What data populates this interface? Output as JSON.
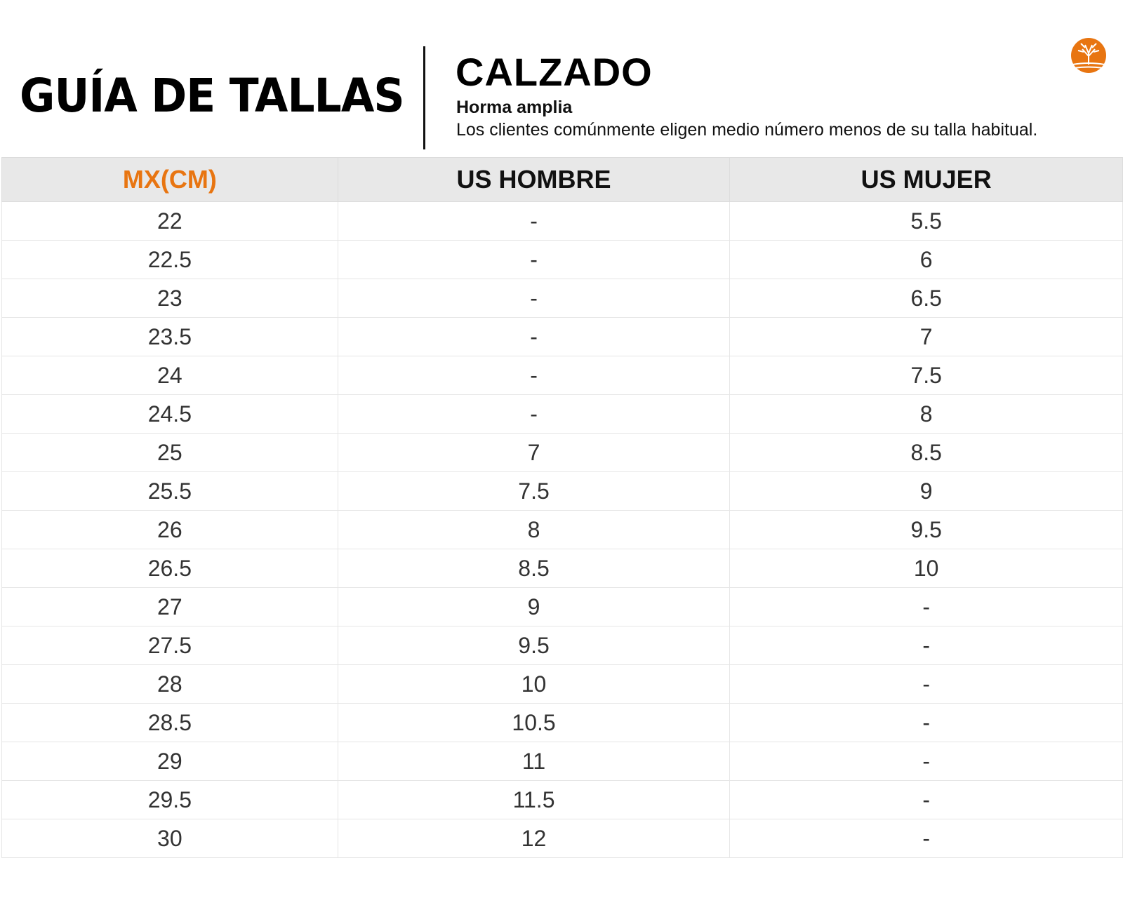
{
  "header": {
    "title": "GUÍA DE TALLAS",
    "category": "CALZADO",
    "fit": "Horma amplia",
    "description": "Los clientes comúnmente eligen medio número menos de su talla habitual.",
    "logo": "tree-logo-icon",
    "brand_color": "#e87511"
  },
  "table": {
    "columns": [
      "MX(CM)",
      "US HOMBRE",
      "US MUJER"
    ],
    "rows": [
      [
        "22",
        "-",
        "5.5"
      ],
      [
        "22.5",
        "-",
        "6"
      ],
      [
        "23",
        "-",
        "6.5"
      ],
      [
        "23.5",
        "-",
        "7"
      ],
      [
        "24",
        "-",
        "7.5"
      ],
      [
        "24.5",
        "-",
        "8"
      ],
      [
        "25",
        "7",
        "8.5"
      ],
      [
        "25.5",
        "7.5",
        "9"
      ],
      [
        "26",
        "8",
        "9.5"
      ],
      [
        "26.5",
        "8.5",
        "10"
      ],
      [
        "27",
        "9",
        "-"
      ],
      [
        "27.5",
        "9.5",
        "-"
      ],
      [
        "28",
        "10",
        "-"
      ],
      [
        "28.5",
        "10.5",
        "-"
      ],
      [
        "29",
        "11",
        "-"
      ],
      [
        "29.5",
        "11.5",
        "-"
      ],
      [
        "30",
        "12",
        "-"
      ]
    ]
  }
}
